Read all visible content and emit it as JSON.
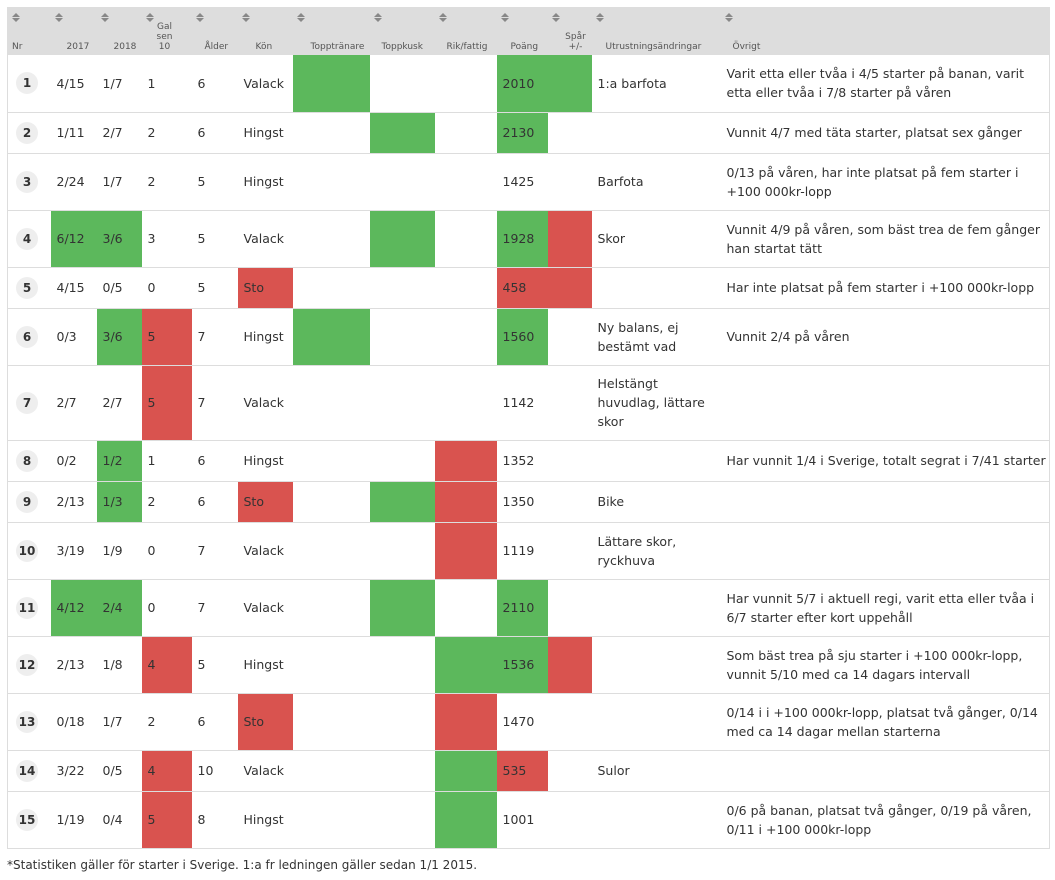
{
  "headers": {
    "nr": "Nr",
    "y2017": "2017",
    "y2018": "2018",
    "galsen10": "Gal sen 10",
    "alder": "Ålder",
    "kon": "Kön",
    "topptranare": "Topptränare",
    "toppkusk": "Toppkusk",
    "rikfattig": "Rik/fattig",
    "poang": "Poäng",
    "spar": "Spår +/-",
    "utrustning": "Utrustningsändringar",
    "ovrigt": "Övrigt"
  },
  "colors": {
    "green": "#5cb85c",
    "red": "#d9534f",
    "header_bg": "#dddddd",
    "badge_bg": "#eeeeee"
  },
  "icons": {
    "sort": "sort-arrows-icon"
  },
  "rows": [
    {
      "nr": "1",
      "y2017": "4/15",
      "y2018": "1/7",
      "gal": "1",
      "alder": "6",
      "kon": "Valack",
      "poang": "2010",
      "utrustning": "1:a barfota",
      "ovrigt": "Varit etta eller tvåa i 4/5 starter på banan, varit etta eller tvåa i 7/8 starter på våren",
      "hl": {
        "tran": "g",
        "poang": "g",
        "spar": "g"
      }
    },
    {
      "nr": "2",
      "y2017": "1/11",
      "y2018": "2/7",
      "gal": "2",
      "alder": "6",
      "kon": "Hingst",
      "poang": "2130",
      "utrustning": "",
      "ovrigt": "Vunnit 4/7 med täta starter, platsat sex gånger",
      "hl": {
        "kusk": "g",
        "poang": "g"
      }
    },
    {
      "nr": "3",
      "y2017": "2/24",
      "y2018": "1/7",
      "gal": "2",
      "alder": "5",
      "kon": "Hingst",
      "poang": "1425",
      "utrustning": "Barfota",
      "ovrigt": "0/13 på våren, har inte platsat på fem starter i +100 000kr-lopp",
      "hl": {}
    },
    {
      "nr": "4",
      "y2017": "6/12",
      "y2018": "3/6",
      "gal": "3",
      "alder": "5",
      "kon": "Valack",
      "poang": "1928",
      "utrustning": "Skor",
      "ovrigt": "Vunnit 4/9 på våren, som bäst trea de fem gånger han startat tätt",
      "hl": {
        "y2017": "g",
        "y2018": "g",
        "kusk": "g",
        "poang": "g",
        "spar": "r"
      }
    },
    {
      "nr": "5",
      "y2017": "4/15",
      "y2018": "0/5",
      "gal": "0",
      "alder": "5",
      "kon": "Sto",
      "poang": "458",
      "utrustning": "",
      "ovrigt": "Har inte platsat på fem starter i +100 000kr-lopp",
      "hl": {
        "kon": "r",
        "poang": "r",
        "spar": "r"
      }
    },
    {
      "nr": "6",
      "y2017": "0/3",
      "y2018": "3/6",
      "gal": "5",
      "alder": "7",
      "kon": "Hingst",
      "poang": "1560",
      "utrustning": "Ny balans, ej bestämt vad",
      "ovrigt": "Vunnit 2/4 på våren",
      "hl": {
        "y2018": "g",
        "gal": "r",
        "tran": "g",
        "poang": "g"
      }
    },
    {
      "nr": "7",
      "y2017": "2/7",
      "y2018": "2/7",
      "gal": "5",
      "alder": "7",
      "kon": "Valack",
      "poang": "1142",
      "utrustning": "Helstängt huvudlag, lättare skor",
      "ovrigt": "",
      "hl": {
        "gal": "r"
      }
    },
    {
      "nr": "8",
      "y2017": "0/2",
      "y2018": "1/2",
      "gal": "1",
      "alder": "6",
      "kon": "Hingst",
      "poang": "1352",
      "utrustning": "",
      "ovrigt": "Har vunnit 1/4 i Sverige, totalt segrat i 7/41 starter",
      "hl": {
        "y2018": "g",
        "rik": "r"
      }
    },
    {
      "nr": "9",
      "y2017": "2/13",
      "y2018": "1/3",
      "gal": "2",
      "alder": "6",
      "kon": "Sto",
      "poang": "1350",
      "utrustning": "Bike",
      "ovrigt": "",
      "hl": {
        "y2018": "g",
        "kon": "r",
        "kusk": "g",
        "rik": "r"
      }
    },
    {
      "nr": "10",
      "y2017": "3/19",
      "y2018": "1/9",
      "gal": "0",
      "alder": "7",
      "kon": "Valack",
      "poang": "1119",
      "utrustning": "Lättare skor, ryckhuva",
      "ovrigt": "",
      "hl": {
        "rik": "r"
      }
    },
    {
      "nr": "11",
      "y2017": "4/12",
      "y2018": "2/4",
      "gal": "0",
      "alder": "7",
      "kon": "Valack",
      "poang": "2110",
      "utrustning": "",
      "ovrigt": "Har vunnit 5/7 i aktuell regi, varit etta eller tvåa i 6/7 starter efter kort uppehåll",
      "hl": {
        "y2017": "g",
        "y2018": "g",
        "kusk": "g",
        "poang": "g"
      }
    },
    {
      "nr": "12",
      "y2017": "2/13",
      "y2018": "1/8",
      "gal": "4",
      "alder": "5",
      "kon": "Hingst",
      "poang": "1536",
      "utrustning": "",
      "ovrigt": "Som bäst trea på sju starter i +100 000kr-lopp, vunnit 5/10 med ca 14 dagars intervall",
      "hl": {
        "gal": "r",
        "rik": "g",
        "poang": "g",
        "spar": "r"
      }
    },
    {
      "nr": "13",
      "y2017": "0/18",
      "y2018": "1/7",
      "gal": "2",
      "alder": "6",
      "kon": "Sto",
      "poang": "1470",
      "utrustning": "",
      "ovrigt": "0/14 i i +100 000kr-lopp, platsat två gånger, 0/14 med ca 14 dagar mellan starterna",
      "hl": {
        "kon": "r",
        "rik": "r"
      }
    },
    {
      "nr": "14",
      "y2017": "3/22",
      "y2018": "0/5",
      "gal": "4",
      "alder": "10",
      "kon": "Valack",
      "poang": "535",
      "utrustning": "Sulor",
      "ovrigt": "",
      "hl": {
        "gal": "r",
        "rik": "g",
        "poang": "r"
      }
    },
    {
      "nr": "15",
      "y2017": "1/19",
      "y2018": "0/4",
      "gal": "5",
      "alder": "8",
      "kon": "Hingst",
      "poang": "1001",
      "utrustning": "",
      "ovrigt": "0/6 på banan, platsat två gånger, 0/19 på våren, 0/11 i +100 000kr-lopp",
      "hl": {
        "gal": "r",
        "rik": "g"
      }
    }
  ],
  "footnote": "*Statistiken gäller för starter i Sverige. 1:a fr ledningen gäller sedan 1/1 2015."
}
